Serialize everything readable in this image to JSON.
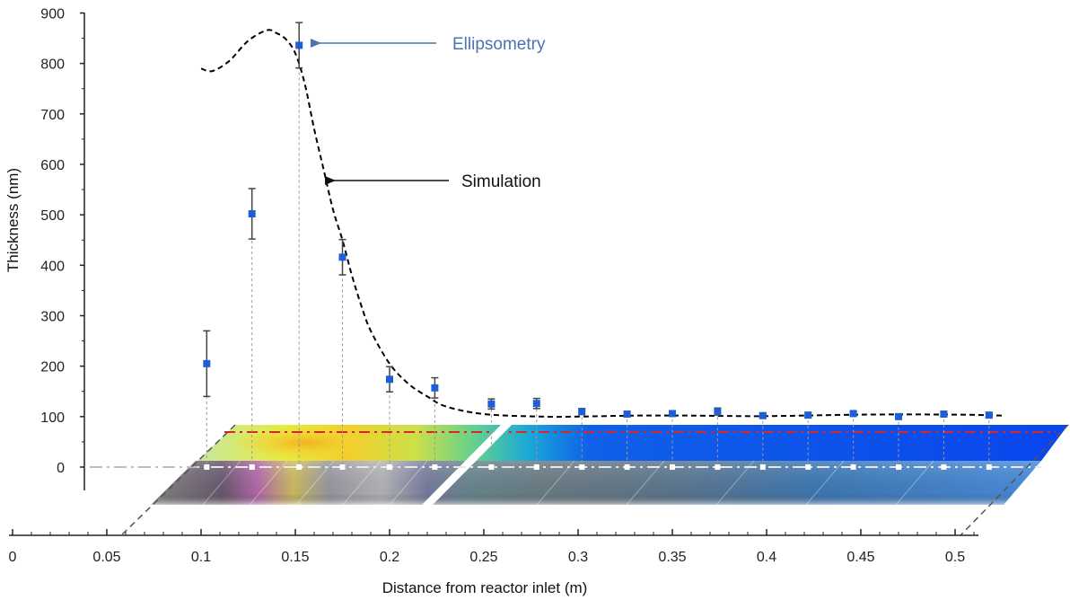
{
  "chart_data": {
    "type": "scatter",
    "xlabel": "Distance from reactor inlet (m)",
    "ylabel": "Thickness (nm)",
    "x_ticks": [
      "0",
      "0.05",
      "0.1",
      "0.15",
      "0.2",
      "0.25",
      "0.3",
      "0.35",
      "0.4",
      "0.45",
      "0.5"
    ],
    "y_ticks": [
      "0",
      "100",
      "200",
      "300",
      "400",
      "500",
      "600",
      "700",
      "800",
      "900"
    ],
    "xlim": [
      0,
      0.5
    ],
    "ylim": [
      0,
      900
    ],
    "series": [
      {
        "name": "Ellipsometry",
        "kind": "points",
        "color": "#1f5fd6",
        "x": [
          0.103,
          0.127,
          0.152,
          0.175,
          0.2,
          0.224,
          0.254,
          0.278,
          0.302,
          0.326,
          0.35,
          0.374,
          0.398,
          0.422,
          0.446,
          0.47,
          0.494,
          0.518
        ],
        "y": [
          205,
          502,
          836,
          416,
          174,
          157,
          125,
          126,
          110,
          105,
          106,
          110,
          102,
          103,
          106,
          100,
          105,
          103
        ],
        "err": [
          65,
          50,
          45,
          35,
          25,
          20,
          10,
          10,
          6,
          5,
          5,
          7,
          5,
          5,
          5,
          5,
          5,
          5
        ]
      },
      {
        "name": "Simulation",
        "kind": "line",
        "style": "dashed",
        "color": "#000000",
        "x": [
          0.1,
          0.106,
          0.115,
          0.125,
          0.135,
          0.14,
          0.145,
          0.15,
          0.155,
          0.16,
          0.165,
          0.17,
          0.175,
          0.18,
          0.185,
          0.19,
          0.2,
          0.21,
          0.22,
          0.23,
          0.25,
          0.28,
          0.3,
          0.33,
          0.36,
          0.4,
          0.45,
          0.5,
          0.525
        ],
        "y": [
          790,
          785,
          805,
          845,
          866,
          860,
          848,
          820,
          760,
          670,
          590,
          510,
          450,
          380,
          320,
          270,
          205,
          165,
          140,
          120,
          105,
          100,
          100,
          102,
          102,
          101,
          104,
          104,
          102
        ]
      }
    ],
    "annotations": [
      {
        "text": "Ellipsometry",
        "color": "#4a72b5"
      },
      {
        "text": "Simulation",
        "color": "#111111"
      }
    ],
    "grid": false,
    "legend": "none"
  },
  "colors": {
    "point": "#1f5fd6",
    "errorbar": "#444444",
    "ellipsometry_annotation": "#4a72b5",
    "red_guide": "#d62828"
  }
}
